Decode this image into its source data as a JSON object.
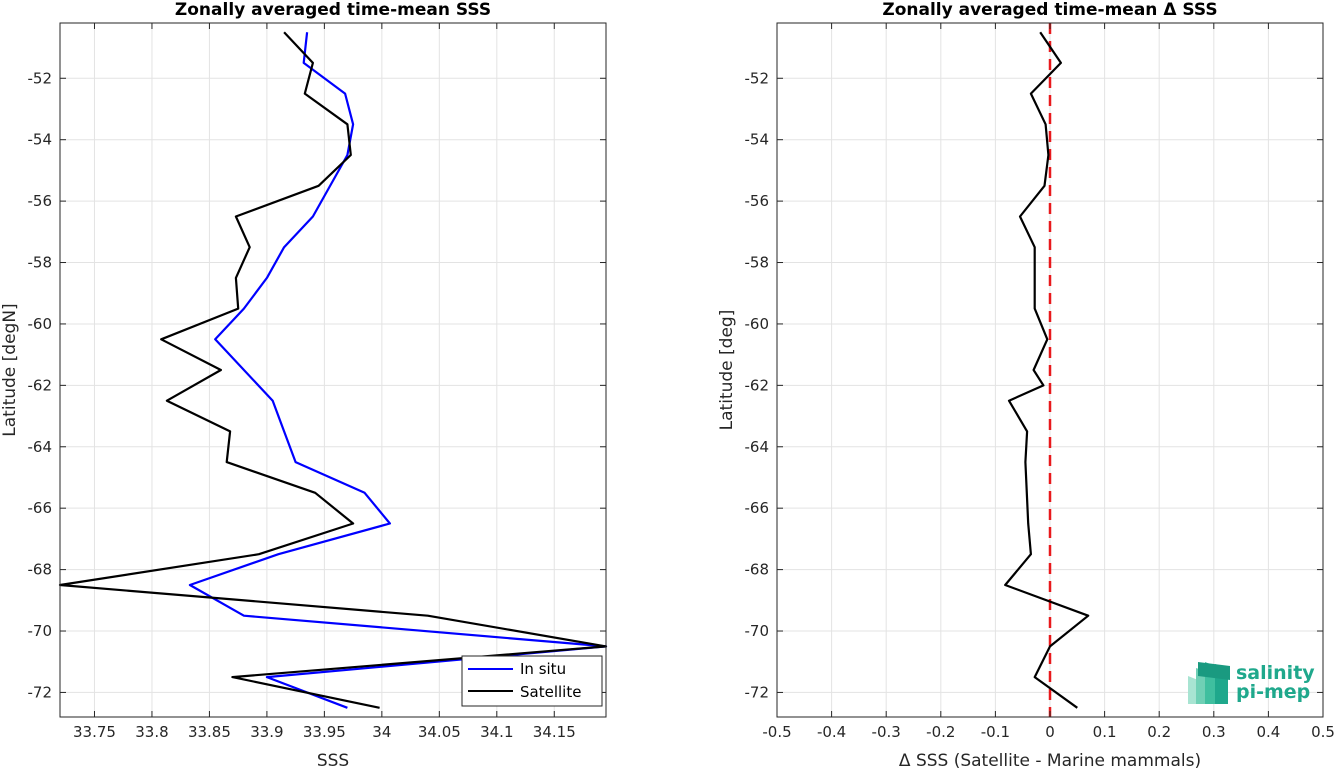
{
  "chart_data": [
    {
      "type": "line",
      "title": "Zonally averaged time-mean SSS",
      "xlabel": "SSS",
      "ylabel": "Latitude [degN]",
      "xlim": [
        33.72,
        34.195
      ],
      "ylim": [
        -72.8,
        -50.2
      ],
      "xticks": [
        33.75,
        33.8,
        33.85,
        33.9,
        33.95,
        34,
        34.05,
        34.1,
        34.15
      ],
      "xticklabels": [
        "33.75",
        "33.8",
        "33.85",
        "33.9",
        "33.95",
        "34",
        "34.05",
        "34.1",
        "34.15"
      ],
      "yticks": [
        -52,
        -54,
        -56,
        -58,
        -60,
        -62,
        -64,
        -66,
        -68,
        -70,
        -72
      ],
      "yticklabels": [
        "-52",
        "-54",
        "-56",
        "-58",
        "-60",
        "-62",
        "-64",
        "-66",
        "-68",
        "-70",
        "-72"
      ],
      "grid": true,
      "legend": "bottom-right",
      "series": [
        {
          "name": "In situ",
          "color": "#0000ff",
          "x": [
            33.935,
            33.932,
            33.968,
            33.975,
            33.97,
            33.94,
            33.915,
            33.9,
            33.88,
            33.855,
            33.905,
            33.915,
            33.925,
            33.985,
            34.007,
            33.91,
            33.833,
            33.88,
            34.195,
            33.9,
            33.97
          ],
          "y": [
            -50.5,
            -51.5,
            -52.5,
            -53.5,
            -54.5,
            -56.5,
            -57.5,
            -58.5,
            -59.5,
            -60.5,
            -62.5,
            -63.5,
            -64.5,
            -65.5,
            -66.5,
            -67.5,
            -68.5,
            -69.5,
            -70.5,
            -71.5,
            -72.5
          ]
        },
        {
          "name": "Satellite",
          "color": "#000000",
          "x": [
            33.915,
            33.94,
            33.933,
            33.97,
            33.973,
            33.945,
            33.873,
            33.885,
            33.873,
            33.875,
            33.808,
            33.86,
            33.813,
            33.868,
            33.865,
            33.942,
            33.975,
            33.893,
            33.72,
            34.04,
            34.195,
            33.87,
            33.998
          ],
          "y": [
            -50.5,
            -51.5,
            -52.5,
            -53.5,
            -54.5,
            -55.5,
            -56.5,
            -57.5,
            -58.5,
            -59.5,
            -60.5,
            -61.5,
            -62.5,
            -63.5,
            -64.5,
            -65.5,
            -66.5,
            -67.5,
            -68.5,
            -69.5,
            -70.5,
            -71.5,
            -72.5
          ]
        }
      ]
    },
    {
      "type": "line",
      "title": "Zonally averaged time-mean Δ SSS",
      "xlabel": "Δ SSS (Satellite - Marine mammals)",
      "ylabel": "Latitude [deg]",
      "xlim": [
        -0.5,
        0.5
      ],
      "ylim": [
        -72.8,
        -50.2
      ],
      "xticks": [
        -0.5,
        -0.4,
        -0.3,
        -0.2,
        -0.1,
        0,
        0.1,
        0.2,
        0.3,
        0.4,
        0.5
      ],
      "xticklabels": [
        "-0.5",
        "-0.4",
        "-0.3",
        "-0.2",
        "-0.1",
        "0",
        "0.1",
        "0.2",
        "0.3",
        "0.4",
        "0.5"
      ],
      "yticks": [
        -52,
        -54,
        -56,
        -58,
        -60,
        -62,
        -64,
        -66,
        -68,
        -70,
        -72
      ],
      "yticklabels": [
        "-52",
        "-54",
        "-56",
        "-58",
        "-60",
        "-62",
        "-64",
        "-66",
        "-68",
        "-70",
        "-72"
      ],
      "grid": true,
      "reference_line": {
        "x": 0,
        "color": "#e8191c",
        "style": "dashed"
      },
      "series": [
        {
          "color": "#000000",
          "x": [
            -0.018,
            0.02,
            -0.035,
            -0.008,
            -0.003,
            -0.01,
            -0.055,
            -0.028,
            -0.028,
            -0.028,
            -0.005,
            -0.03,
            -0.012,
            -0.075,
            -0.042,
            -0.045,
            -0.04,
            -0.035,
            -0.082,
            0.07,
            0.0,
            -0.028,
            0.05
          ],
          "y": [
            -50.5,
            -51.5,
            -52.5,
            -53.5,
            -54.5,
            -55.5,
            -56.5,
            -57.5,
            -58.5,
            -59.5,
            -60.5,
            -61.5,
            -62.0,
            -62.5,
            -63.5,
            -64.5,
            -66.5,
            -67.5,
            -68.5,
            -69.5,
            -70.5,
            -71.5,
            -72.5
          ]
        }
      ]
    }
  ],
  "logo": {
    "line1": "salinity",
    "line2": "pi-mep"
  }
}
